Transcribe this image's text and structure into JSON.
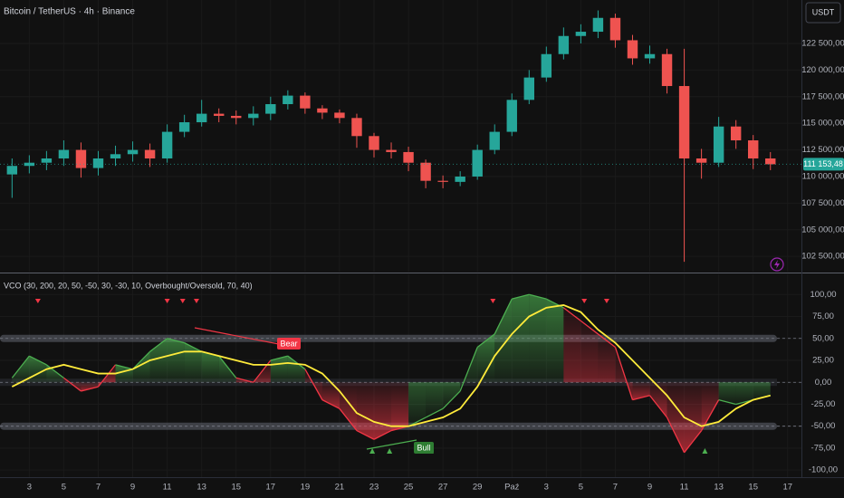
{
  "header": {
    "title": "Bitcoin / TetherUS · 4h · Binance",
    "currency": "USDT"
  },
  "chart_data": [
    {
      "type": "candlestick",
      "open": [
        110200,
        111000,
        111300,
        111700,
        112500,
        110800,
        111700,
        112100,
        112500,
        111700,
        114200,
        115100,
        115900,
        115700,
        115500,
        115900,
        116800,
        117600,
        116400,
        116000,
        115500,
        113800,
        112500,
        112300,
        111300,
        109600,
        109500,
        110000,
        112500,
        114200,
        117200,
        119300,
        121500,
        123200,
        123600,
        124900,
        122800,
        121100,
        121500,
        118500,
        111700,
        111300,
        114700,
        113400,
        111700
      ],
      "high": [
        111700,
        112000,
        112400,
        113400,
        113200,
        112400,
        112900,
        113300,
        113100,
        114900,
        115800,
        117200,
        116400,
        116200,
        116600,
        117500,
        118100,
        117900,
        116700,
        116300,
        115900,
        114100,
        113200,
        112800,
        111600,
        110100,
        110500,
        113000,
        114900,
        117800,
        120000,
        122200,
        124000,
        124300,
        125600,
        125300,
        123300,
        122300,
        122000,
        122000,
        112600,
        115600,
        115300,
        113900,
        112300
      ],
      "low": [
        108000,
        110300,
        110600,
        111000,
        109900,
        110100,
        111000,
        111400,
        110900,
        111300,
        113700,
        114700,
        115100,
        114900,
        114800,
        115300,
        116300,
        115900,
        115400,
        115000,
        112700,
        111800,
        111700,
        110500,
        108900,
        108900,
        109100,
        109700,
        112100,
        113800,
        116800,
        118900,
        121000,
        122500,
        123000,
        122100,
        120500,
        120600,
        117800,
        102000,
        109800,
        110900,
        112600,
        110700,
        110600
      ],
      "close": [
        111000,
        111300,
        111700,
        112500,
        110800,
        111700,
        112100,
        112500,
        111700,
        114200,
        115100,
        115900,
        115700,
        115500,
        115900,
        116800,
        117600,
        116400,
        116000,
        115500,
        113800,
        112500,
        112300,
        111300,
        109600,
        109500,
        110000,
        112500,
        114200,
        117200,
        119300,
        121500,
        123200,
        123600,
        124900,
        122800,
        121100,
        121500,
        118500,
        111700,
        111300,
        114700,
        113400,
        111700,
        111153.48
      ],
      "up_color": "#26a69a",
      "down_color": "#ef5350",
      "last_price": {
        "value": 111153.48,
        "label": "111 153,48"
      },
      "ylim": [
        101070,
        126580
      ],
      "yticks": [
        {
          "value": 102500,
          "label": "102 500,00"
        },
        {
          "value": 105000,
          "label": "105 000,00"
        },
        {
          "value": 107500,
          "label": "107 500,00"
        },
        {
          "value": 110000,
          "label": "110 000,00"
        },
        {
          "value": 112500,
          "label": "112 500,00"
        },
        {
          "value": 115000,
          "label": "115 000,00"
        },
        {
          "value": 117500,
          "label": "117 500,00"
        },
        {
          "value": 120000,
          "label": "120 000,00"
        },
        {
          "value": 122500,
          "label": "122 500,00"
        }
      ],
      "xlim": [
        -0.7,
        45.8
      ],
      "xticks": [
        {
          "value": 1,
          "label": "3"
        },
        {
          "value": 3,
          "label": "5"
        },
        {
          "value": 5,
          "label": "7"
        },
        {
          "value": 7,
          "label": "9"
        },
        {
          "value": 9,
          "label": "11"
        },
        {
          "value": 11,
          "label": "13"
        },
        {
          "value": 13,
          "label": "15"
        },
        {
          "value": 15,
          "label": "17"
        },
        {
          "value": 17,
          "label": "19"
        },
        {
          "value": 19,
          "label": "21"
        },
        {
          "value": 21,
          "label": "23"
        },
        {
          "value": 23,
          "label": "25"
        },
        {
          "value": 25,
          "label": "27"
        },
        {
          "value": 27,
          "label": "29"
        },
        {
          "value": 29,
          "label": "Paź"
        },
        {
          "value": 31,
          "label": "3"
        },
        {
          "value": 33,
          "label": "5"
        },
        {
          "value": 35,
          "label": "7"
        },
        {
          "value": 37,
          "label": "9"
        },
        {
          "value": 39,
          "label": "11"
        },
        {
          "value": 41,
          "label": "13"
        },
        {
          "value": 43,
          "label": "15"
        },
        {
          "value": 45,
          "label": "17"
        }
      ],
      "grid": true
    },
    {
      "type": "line",
      "title": "VCO (30, 200, 20, 50, -50, 30, -30, 10, Overbought/Oversold, 70, 40)",
      "series": [
        {
          "color": "#4caf50",
          "down_color": "#f23645",
          "values": [
            5,
            30,
            20,
            5,
            -10,
            -5,
            20,
            15,
            35,
            50,
            45,
            35,
            30,
            5,
            0,
            25,
            30,
            15,
            -20,
            -30,
            -55,
            -65,
            -55,
            -50,
            -40,
            -30,
            -10,
            40,
            55,
            95,
            100,
            95,
            85,
            70,
            55,
            40,
            -20,
            -15,
            -40,
            -80,
            -55,
            -20,
            -25,
            -20,
            -15
          ]
        },
        {
          "color": "#ffeb3b",
          "values": [
            -5,
            5,
            15,
            20,
            15,
            10,
            10,
            15,
            25,
            30,
            35,
            35,
            30,
            25,
            20,
            20,
            22,
            20,
            10,
            -10,
            -35,
            -45,
            -50,
            -50,
            -45,
            -40,
            -30,
            -5,
            30,
            55,
            75,
            85,
            88,
            80,
            60,
            45,
            25,
            5,
            -15,
            -40,
            -50,
            -45,
            -30,
            -20,
            -15
          ]
        }
      ],
      "levels": [
        50,
        0,
        -50
      ],
      "bear_markers": [
        1.5,
        9,
        9.9,
        10.7,
        27.9,
        33.2,
        34.5
      ],
      "bull_markers": [
        20.9,
        21.9,
        24.3,
        40.2
      ],
      "annotations": [
        "Bear",
        "Bull"
      ],
      "ylim": [
        -106,
        123
      ],
      "yticks": [
        {
          "value": 100,
          "label": "100,00"
        },
        {
          "value": 75,
          "label": "75,00"
        },
        {
          "value": 50,
          "label": "50,00"
        },
        {
          "value": 25,
          "label": "25,00"
        },
        {
          "value": 0,
          "label": "0,00"
        },
        {
          "value": -25,
          "label": "-25,00"
        },
        {
          "value": -50,
          "label": "-50,00"
        },
        {
          "value": -75,
          "label": "-75,00"
        },
        {
          "value": -100,
          "label": "-100,00"
        }
      ]
    }
  ]
}
